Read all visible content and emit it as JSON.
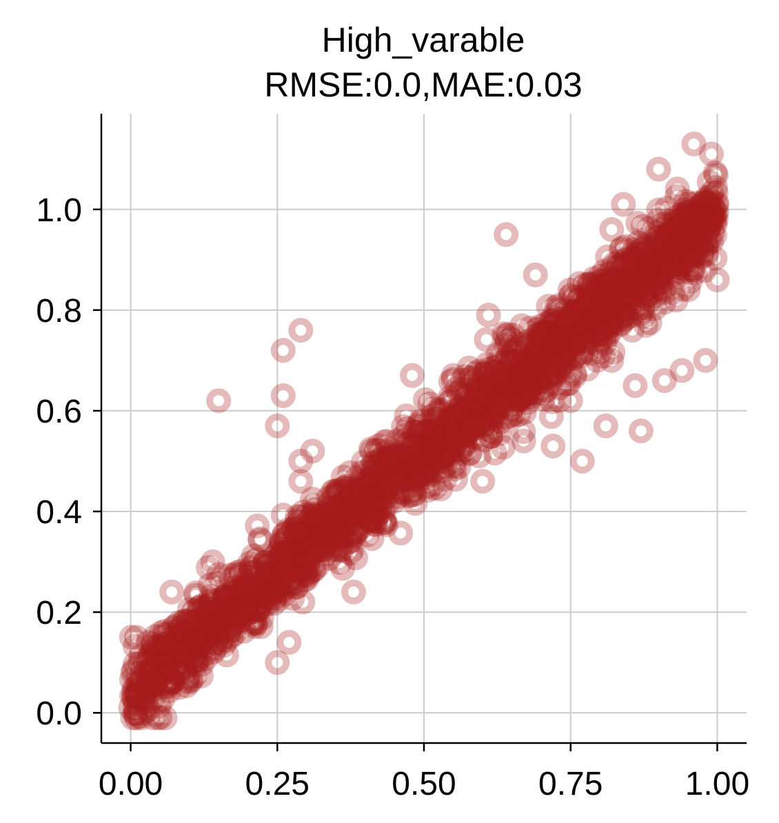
{
  "chart_data": {
    "type": "scatter",
    "title": "High_varable",
    "subtitle": "RMSE:0.0,MAE:0.03",
    "xlabel": "",
    "ylabel": "",
    "xlim": [
      -0.05,
      1.05
    ],
    "ylim": [
      -0.06,
      1.19
    ],
    "xticks": [
      0.0,
      0.25,
      0.5,
      0.75,
      1.0
    ],
    "xtick_labels": [
      "0.00",
      "0.25",
      "0.50",
      "0.75",
      "1.00"
    ],
    "yticks": [
      0.0,
      0.2,
      0.4,
      0.6,
      0.8,
      1.0
    ],
    "ytick_labels": [
      "0.0",
      "0.2",
      "0.4",
      "0.6",
      "0.8",
      "1.0"
    ],
    "grid": true,
    "marker_color": "#a51c1c",
    "marker_alpha": 0.3,
    "trend": {
      "slope": 0.95,
      "intercept": 0.04,
      "noise_std": 0.04,
      "n_points": 2200
    },
    "outliers": [
      {
        "x": 0.15,
        "y": 0.62
      },
      {
        "x": 0.25,
        "y": 0.57
      },
      {
        "x": 0.26,
        "y": 0.63
      },
      {
        "x": 0.26,
        "y": 0.72
      },
      {
        "x": 0.29,
        "y": 0.76
      },
      {
        "x": 0.29,
        "y": 0.5
      },
      {
        "x": 0.31,
        "y": 0.52
      },
      {
        "x": 0.29,
        "y": 0.46
      },
      {
        "x": 0.48,
        "y": 0.67
      },
      {
        "x": 0.47,
        "y": 0.59
      },
      {
        "x": 0.55,
        "y": 0.67
      },
      {
        "x": 0.64,
        "y": 0.95
      },
      {
        "x": 0.69,
        "y": 0.87
      },
      {
        "x": 0.61,
        "y": 0.79
      },
      {
        "x": 0.77,
        "y": 0.5
      },
      {
        "x": 0.81,
        "y": 0.57
      },
      {
        "x": 0.75,
        "y": 0.62
      },
      {
        "x": 0.84,
        "y": 1.01
      },
      {
        "x": 0.82,
        "y": 0.96
      },
      {
        "x": 0.9,
        "y": 1.08
      },
      {
        "x": 0.96,
        "y": 1.13
      },
      {
        "x": 0.99,
        "y": 1.11
      },
      {
        "x": 0.91,
        "y": 0.66
      },
      {
        "x": 0.98,
        "y": 0.7
      },
      {
        "x": 0.82,
        "y": 0.7
      },
      {
        "x": 0.86,
        "y": 0.65
      },
      {
        "x": 0.25,
        "y": 0.1
      },
      {
        "x": 0.27,
        "y": 0.14
      },
      {
        "x": 0.38,
        "y": 0.24
      },
      {
        "x": 0.01,
        "y": 0.0
      },
      {
        "x": 0.0,
        "y": 0.01
      },
      {
        "x": 0.07,
        "y": 0.24
      },
      {
        "x": 0.14,
        "y": 0.3
      },
      {
        "x": 0.01,
        "y": 0.15
      },
      {
        "x": 0.67,
        "y": 0.54
      },
      {
        "x": 0.72,
        "y": 0.53
      },
      {
        "x": 0.65,
        "y": 0.7
      },
      {
        "x": 0.87,
        "y": 0.56
      },
      {
        "x": 0.94,
        "y": 0.68
      },
      {
        "x": 1.0,
        "y": 0.86
      },
      {
        "x": 0.93,
        "y": 0.82
      },
      {
        "x": 0.6,
        "y": 0.46
      }
    ]
  }
}
